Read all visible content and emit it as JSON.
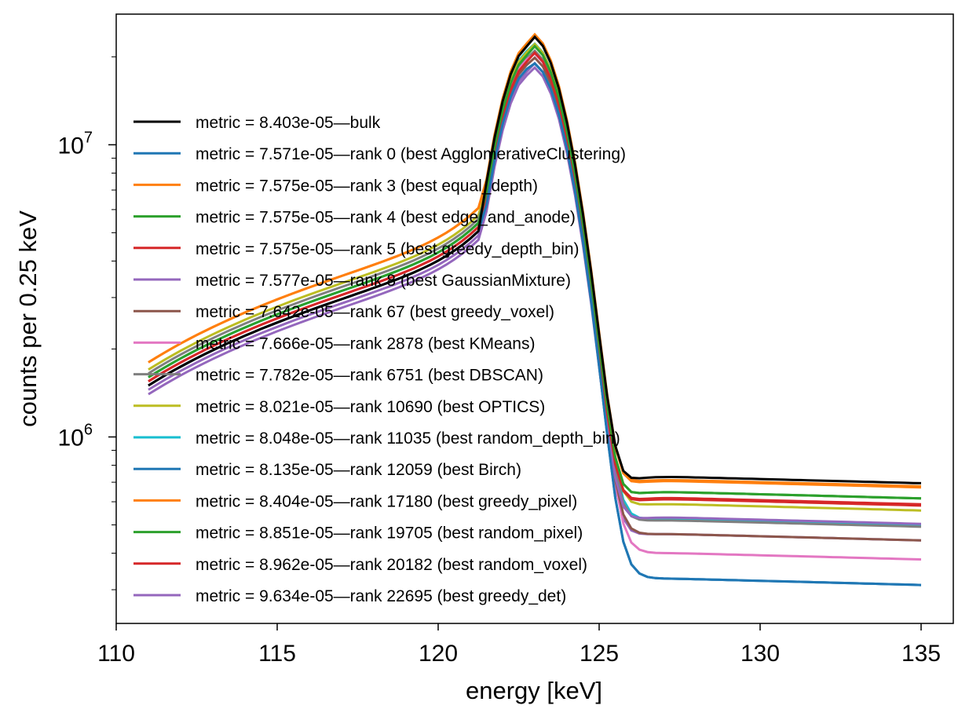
{
  "chart_data": {
    "type": "line",
    "title": "",
    "xlabel": "energy [keV]",
    "ylabel": "counts per 0.25 keV",
    "y_scale": "log",
    "xlim": [
      110,
      136
    ],
    "ylim": [
      230000,
      28000000
    ],
    "x_ticks": [
      110,
      115,
      120,
      125,
      130,
      135
    ],
    "y_major_ticks": [
      {
        "value": 1000000,
        "base": "10",
        "exp": "6"
      },
      {
        "value": 10000000,
        "base": "10",
        "exp": "7"
      }
    ],
    "legend_position": "center-left",
    "x_range": [
      111,
      135
    ],
    "x_step": 0.25,
    "series": [
      {
        "label": "metric = 8.403e-05—bulk",
        "color": "#000000",
        "shoulder": 1500000,
        "peak": 22000000,
        "tail": 620000
      },
      {
        "label": "metric = 7.571e-05—rank 0 (best AgglomerativeClustering)",
        "color": "#1f77b4",
        "shoulder": 1500000,
        "peak": 18400000,
        "tail": 278000
      },
      {
        "label": "metric = 7.575e-05—rank 3 (best equal_depth)",
        "color": "#ff7f0e",
        "shoulder": 1800000,
        "peak": 22200000,
        "tail": 600000
      },
      {
        "label": "metric = 7.575e-05—rank 4 (best edge_and_anode)",
        "color": "#2ca02c",
        "shoulder": 1600000,
        "peak": 20500000,
        "tail": 550000
      },
      {
        "label": "metric = 7.575e-05—rank 5 (best greedy_depth_bin)",
        "color": "#d62728",
        "shoulder": 1550000,
        "peak": 19500000,
        "tail": 520000
      },
      {
        "label": "metric = 7.577e-05—rank 8 (best GaussianMixture)",
        "color": "#9467bd",
        "shoulder": 1450000,
        "peak": 18000000,
        "tail": 450000
      },
      {
        "label": "metric = 7.642e-05—rank 67 (best greedy_voxel)",
        "color": "#8c564b",
        "shoulder": 1500000,
        "peak": 19000000,
        "tail": 395000
      },
      {
        "label": "metric = 7.666e-05—rank 2878 (best KMeans)",
        "color": "#e377c2",
        "shoulder": 1500000,
        "peak": 19800000,
        "tail": 340000
      },
      {
        "label": "metric = 7.782e-05—rank 6751 (best DBSCAN)",
        "color": "#7f7f7f",
        "shoulder": 1650000,
        "peak": 20000000,
        "tail": 440000
      },
      {
        "label": "metric = 8.021e-05—rank 10690 (best OPTICS)",
        "color": "#bcbd22",
        "shoulder": 1700000,
        "peak": 21000000,
        "tail": 500000
      },
      {
        "label": "metric = 8.048e-05—rank 11035 (best random_depth_bin)",
        "color": "#17becf",
        "shoulder": 1600000,
        "peak": 21200000,
        "tail": 445000
      },
      {
        "label": "metric = 8.135e-05—rank 12059 (best Birch)",
        "color": "#1f77b4",
        "shoulder": 1500000,
        "peak": 18400000,
        "tail": 278000
      },
      {
        "label": "metric = 8.404e-05—rank 17180 (best greedy_pixel)",
        "color": "#ff7f0e",
        "shoulder": 1800000,
        "peak": 22500000,
        "tail": 605000
      },
      {
        "label": "metric = 8.851e-05—rank 19705 (best random_pixel)",
        "color": "#2ca02c",
        "shoulder": 1600000,
        "peak": 20600000,
        "tail": 550000
      },
      {
        "label": "metric = 8.962e-05—rank 20182 (best random_voxel)",
        "color": "#d62728",
        "shoulder": 1550000,
        "peak": 19600000,
        "tail": 525000
      },
      {
        "label": "metric = 9.634e-05—rank 22695 (best greedy_det)",
        "color": "#9467bd",
        "shoulder": 1400000,
        "peak": 17500000,
        "tail": 395000
      }
    ]
  }
}
